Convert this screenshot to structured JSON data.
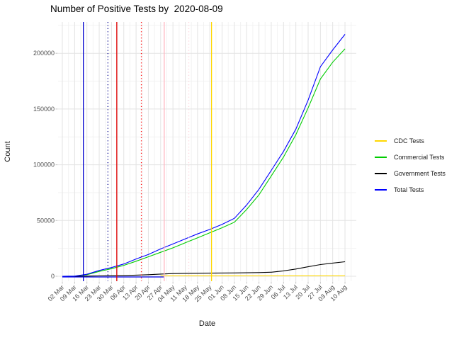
{
  "title": "Number of Positive Tests by  2020-08-09",
  "chart_data": {
    "type": "line",
    "title": "Number of Positive Tests by  2020-08-09",
    "xlabel": "Date",
    "ylabel": "Count",
    "x_tick_labels": [
      "02 Mar",
      "09 Mar",
      "16 Mar",
      "23 Mar",
      "30 Mar",
      "06 Apr",
      "13 Apr",
      "20 Apr",
      "27 Apr",
      "04 May",
      "11 May",
      "18 May",
      "25 May",
      "01 Jun",
      "08 Jun",
      "15 Jun",
      "22 Jun",
      "29 Jun",
      "06 Jul",
      "13 Jul",
      "20 Jul",
      "27 Jul",
      "03 Aug",
      "10 Aug"
    ],
    "yticks": [
      0,
      50000,
      100000,
      150000,
      200000
    ],
    "y_tick_labels": [
      "0",
      "50000",
      "100000",
      "150000",
      "200000"
    ],
    "ylim": [
      0,
      228000
    ],
    "grid": true,
    "legend_position": "right",
    "series": [
      {
        "name": "CDC Tests",
        "color": "#FFD700",
        "values": [
          null,
          null,
          null,
          null,
          null,
          null,
          null,
          null,
          400,
          400,
          400,
          400,
          400,
          400,
          400,
          400,
          400,
          400,
          400,
          400,
          400,
          400,
          400,
          400
        ]
      },
      {
        "name": "Commercial Tests",
        "color": "#00CC00",
        "values": [
          0,
          100,
          1400,
          4300,
          6800,
          9800,
          13500,
          17500,
          21500,
          25500,
          30000,
          34500,
          39000,
          43500,
          48500,
          60000,
          73000,
          90000,
          107000,
          127000,
          151000,
          177000,
          192000,
          204000
        ]
      },
      {
        "name": "Government Tests",
        "color": "#000000",
        "values": [
          0,
          0,
          100,
          300,
          500,
          700,
          1000,
          1400,
          2000,
          2400,
          2600,
          2700,
          2800,
          2900,
          3000,
          3100,
          3300,
          3600,
          4800,
          6500,
          8500,
          10500,
          11800,
          13000
        ]
      },
      {
        "name": "Total Tests",
        "color": "#0000FF",
        "values": [
          0,
          150,
          1800,
          5200,
          7800,
          11000,
          15500,
          19500,
          24500,
          29000,
          33500,
          38000,
          42000,
          46500,
          52000,
          64000,
          78000,
          95000,
          112000,
          132000,
          158000,
          188000,
          203000,
          217000
        ]
      }
    ],
    "annotations": {
      "zero_hline": {
        "y": 0,
        "color": "#0000EE",
        "x_start_index": 0,
        "x_end_index": 8.3
      },
      "vlines": [
        {
          "x_index": 1.71,
          "color": "#0000CD",
          "style": "solid"
        },
        {
          "x_index": 3.71,
          "color": "#00008B",
          "style": "dotted"
        },
        {
          "x_index": 4.43,
          "color": "#E00000",
          "style": "solid"
        },
        {
          "x_index": 6.43,
          "color": "#FF0000",
          "style": "dotted"
        },
        {
          "x_index": 8.29,
          "color": "#FFB6C1",
          "style": "solid"
        },
        {
          "x_index": 10.29,
          "color": "#FFD4DC",
          "style": "dotted"
        },
        {
          "x_index": 12.14,
          "color": "#FFD700",
          "style": "solid"
        }
      ]
    },
    "legend": {
      "entries": [
        {
          "label": "CDC Tests",
          "color": "#FFD700"
        },
        {
          "label": "Commercial Tests",
          "color": "#00CC00"
        },
        {
          "label": "Government Tests",
          "color": "#000000"
        },
        {
          "label": "Total Tests",
          "color": "#0000FF"
        }
      ]
    }
  }
}
